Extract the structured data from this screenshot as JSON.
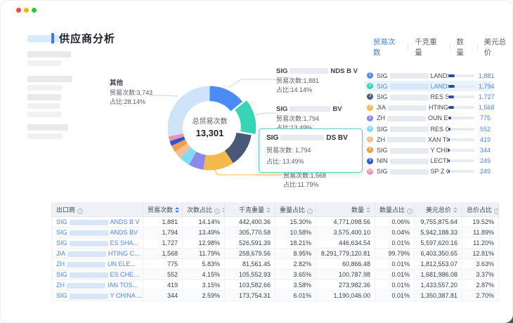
{
  "window": {
    "traffic_lights": [
      "#f5473c",
      "#f7b500",
      "#21c93c"
    ]
  },
  "header": {
    "title": "供应商分析"
  },
  "tabs": [
    {
      "label": "贸易次数",
      "active": true
    },
    {
      "label": "千克重量",
      "active": false
    },
    {
      "label": "数量",
      "active": false
    },
    {
      "label": "美元总价",
      "active": false
    }
  ],
  "chart_data": {
    "type": "donut",
    "center_label": "总贸易次数",
    "center_value": "13,301",
    "total": 13301,
    "legend_position": "callouts-and-right-list",
    "slices": [
      {
        "pre": "SIG",
        "post": "LANDS B V",
        "value": 1881,
        "pct": "14.14%",
        "color": "#4a8cf5"
      },
      {
        "pre": "SIG",
        "post": "LANDS BV",
        "value": 1794,
        "pct": "13.49%",
        "color": "#36d5b5",
        "exploded": true
      },
      {
        "pre": "SIG",
        "post": "RES SHA...",
        "value": 1727,
        "pct": "12.98%",
        "color": "#4a5878"
      },
      {
        "pre": "JIA",
        "post": "HTING C...",
        "value": 1568,
        "pct": "11.79%",
        "color": "#f3b94c"
      },
      {
        "pre": "ZH",
        "post": "OUN ELE...",
        "value": 775,
        "pct": "5.83%",
        "color": "#8d88eb"
      },
      {
        "pre": "SIG",
        "post": "RES CHE...",
        "value": 552,
        "pct": "4.15%",
        "color": "#80dbf2"
      },
      {
        "pre": "ZH",
        "post": "XAN TOS...",
        "value": 419,
        "pct": "3.15%",
        "color": "#f4bf92"
      },
      {
        "pre": "SIG",
        "post": "Y CHINA ...",
        "value": 344,
        "pct": "2.59%",
        "color": "#f09d4e"
      },
      {
        "pre": "NIN",
        "post": "LECTRIC ...",
        "value": 249,
        "pct": "1.87%",
        "color": "#2f55c9"
      },
      {
        "pre": "SIG",
        "post": "SP Z O O",
        "value": 249,
        "pct": "1.87%",
        "color": "#f390b5"
      },
      {
        "label": "其他",
        "value": 3743,
        "pct": "28.14%",
        "color": "#cfe4f9"
      }
    ]
  },
  "callouts": {
    "other": {
      "title": "其他",
      "count": "贸易次数:3,743",
      "share": "占比:28.14%"
    },
    "right": [
      {
        "pre": "SIG",
        "post": "NDS B V",
        "count": "贸易次数:1,881",
        "share": "占比:14.14%"
      },
      {
        "pre": "SIG",
        "post": "BV",
        "count": "贸易次数:1,794",
        "share": "占比:13.49%"
      },
      {
        "fragment": "SHANG..."
      },
      {
        "pre": "JIA",
        "post": "ING C...",
        "count": "贸易次数:1,568",
        "share": "占比:11.79%"
      }
    ]
  },
  "tooltip": {
    "pre": "SIG",
    "post": "DS BV",
    "count": "贸易次数: 1,794",
    "share": "占比: 13.49%"
  },
  "ranking": {
    "rows": [
      {
        "rank": 1,
        "pre": "SIG",
        "post": "LANDS B V",
        "value": "1,881",
        "num": 1881,
        "color": "#4a8cf5",
        "highlight": false
      },
      {
        "rank": 2,
        "pre": "SIG",
        "post": "LANDS BV",
        "value": "1,794",
        "num": 1794,
        "color": "#36d5b5",
        "highlight": true
      },
      {
        "rank": 3,
        "pre": "SIG",
        "post": "RES SHA...",
        "value": "1,727",
        "num": 1727,
        "color": "#4a5878",
        "highlight": false
      },
      {
        "rank": 4,
        "pre": "JIA",
        "post": "HTING C...",
        "value": "1,568",
        "num": 1568,
        "color": "#f3b94c",
        "highlight": false
      },
      {
        "rank": 5,
        "pre": "ZH",
        "post": "OUN ELE...",
        "value": "775",
        "num": 775,
        "color": "#8d88eb",
        "highlight": false
      },
      {
        "rank": 6,
        "pre": "SIG",
        "post": "RES CHE...",
        "value": "552",
        "num": 552,
        "color": "#80dbf2",
        "highlight": false
      },
      {
        "rank": 7,
        "pre": "ZH",
        "post": "XAN TOS...",
        "value": "419",
        "num": 419,
        "color": "#f4bf92",
        "highlight": false
      },
      {
        "rank": 8,
        "pre": "SIG",
        "post": "Y CHINA ...",
        "value": "344",
        "num": 344,
        "color": "#f09d4e",
        "highlight": false
      },
      {
        "rank": 9,
        "pre": "NIN",
        "post": "LECTRIC ...",
        "value": "249",
        "num": 249,
        "color": "#2f55c9",
        "highlight": false
      },
      {
        "rank": 10,
        "pre": "SIG",
        "post": "SP Z O O",
        "value": "249",
        "num": 249,
        "color": "#f390b5",
        "highlight": false
      }
    ]
  },
  "table": {
    "columns": [
      {
        "label": "出口商",
        "info": true,
        "sort": false,
        "active": false
      },
      {
        "label": "贸易次数",
        "info": false,
        "sort": true,
        "active": true
      },
      {
        "label": "次数占比",
        "info": true,
        "sort": true,
        "active": false
      },
      {
        "label": "千克重量",
        "info": false,
        "sort": true,
        "active": false
      },
      {
        "label": "重量占比",
        "info": true,
        "sort": true,
        "active": false
      },
      {
        "label": "数量",
        "info": false,
        "sort": true,
        "active": false
      },
      {
        "label": "数量占比",
        "info": true,
        "sort": true,
        "active": false
      },
      {
        "label": "美元总价",
        "info": false,
        "sort": true,
        "active": false
      },
      {
        "label": "总价占比",
        "info": true,
        "sort": true,
        "active": false
      }
    ],
    "rows": [
      {
        "pre": "SIG",
        "post": "ANDS B V",
        "cells": [
          "1,881",
          "14.14%",
          "442,400.36",
          "15.30%",
          "4,771,098.56",
          "0.06%",
          "9,755,875.64",
          "19.52%"
        ]
      },
      {
        "pre": "SIG",
        "post": "ANDS BV",
        "cells": [
          "1,794",
          "13.49%",
          "305,770.58",
          "10.58%",
          "3,575,400.10",
          "0.04%",
          "5,942,188.33",
          "11.89%"
        ]
      },
      {
        "pre": "SIG",
        "post": "ES SHA...",
        "cells": [
          "1,727",
          "12.98%",
          "526,591.39",
          "18.21%",
          "446,634.54",
          "0.01%",
          "5,597,620.16",
          "11.20%"
        ]
      },
      {
        "pre": "JIA",
        "post": "HTING C...",
        "cells": [
          "1,568",
          "11.79%",
          "258,679.56",
          "8.95%",
          "8,291,779,120.81",
          "99.79%",
          "6,403,350.65",
          "12.81%"
        ]
      },
      {
        "pre": "ZH",
        "post": "UN ELE...",
        "cells": [
          "775",
          "5.83%",
          "81,561.45",
          "2.82%",
          "60,866.48",
          "0.01%",
          "1,812,553.07",
          "3.63%"
        ]
      },
      {
        "pre": "SIG",
        "post": "ES CHE...",
        "cells": [
          "552",
          "4.15%",
          "105,552.93",
          "3.65%",
          "100,787.98",
          "0.01%",
          "1,681,986.08",
          "3.37%"
        ]
      },
      {
        "pre": "ZH",
        "post": "IAN TOS...",
        "cells": [
          "419",
          "3.15%",
          "103,582.66",
          "3.58%",
          "273,982.36",
          "0.01%",
          "1,433,557.20",
          "2.87%"
        ]
      },
      {
        "pre": "SIG",
        "post": "Y CHINA ...",
        "cells": [
          "344",
          "2.59%",
          "173,754.31",
          "6.01%",
          "1,190,046.00",
          "0.01%",
          "1,350,387.81",
          "2.70%"
        ]
      }
    ]
  }
}
